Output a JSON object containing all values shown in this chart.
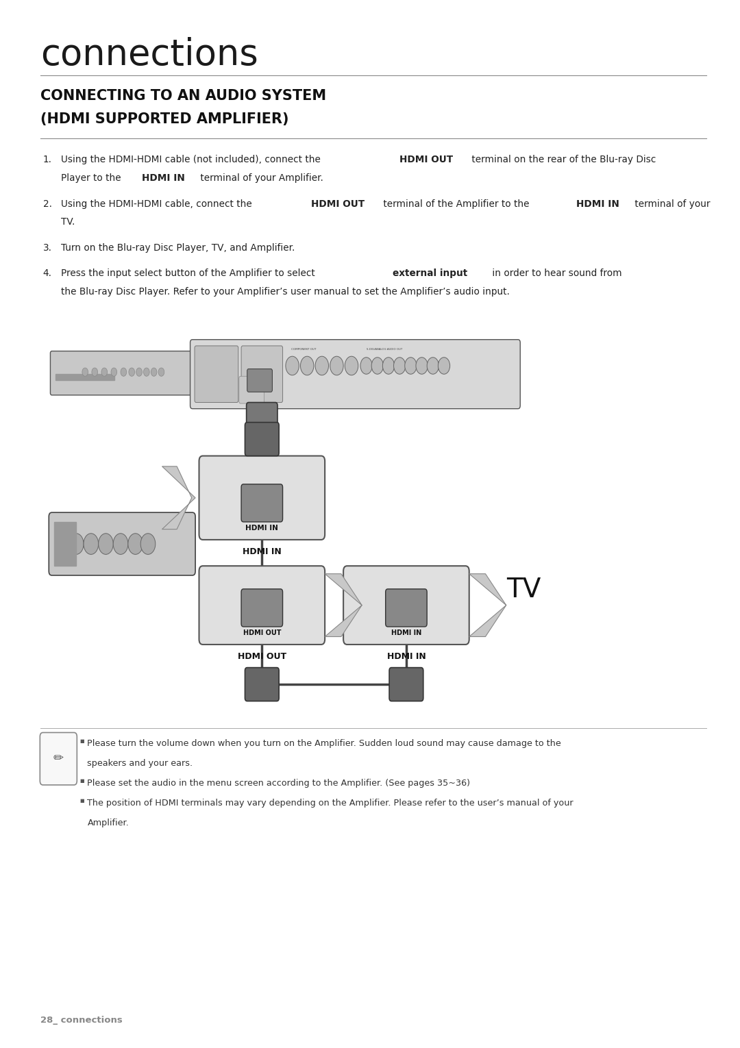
{
  "bg_color": "#ffffff",
  "page_width": 10.8,
  "page_height": 15.3,
  "title_chapter": "connections",
  "section_title_line1": "CONNECTING TO AN AUDIO SYSTEM",
  "section_title_line2": "(HDMI SUPPORTED AMPLIFIER)",
  "footer_text": "28_ connections",
  "note_icon_char": "✎",
  "bullet_char": "■",
  "tv_label": "TV",
  "hdmi_in_label": "HDMI IN",
  "hdmi_out_label": "HDMI OUT"
}
